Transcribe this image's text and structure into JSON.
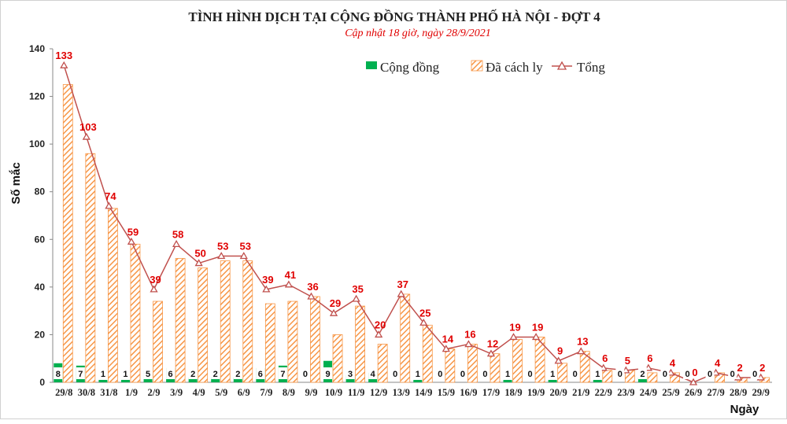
{
  "chart_data": {
    "type": "bar",
    "title": "TÌNH HÌNH DỊCH TẠI CỘNG ĐỒNG THÀNH PHỐ HÀ NỘI - ĐỢT 4",
    "subtitle": "Cập nhật 18 giờ, ngày 28/9/2021",
    "xlabel": "Ngày",
    "ylabel": "Số mắc",
    "ylim": [
      0,
      140
    ],
    "yticks": [
      0,
      20,
      40,
      60,
      80,
      100,
      120,
      140
    ],
    "legend_position": "top",
    "categories": [
      "29/8",
      "30/8",
      "31/8",
      "1/9",
      "2/9",
      "3/9",
      "4/9",
      "5/9",
      "6/9",
      "7/9",
      "8/9",
      "9/9",
      "10/9",
      "11/9",
      "12/9",
      "13/9",
      "14/9",
      "15/9",
      "16/9",
      "17/9",
      "18/9",
      "19/9",
      "20/9",
      "21/9",
      "22/9",
      "23/9",
      "24/9",
      "25/9",
      "26/9",
      "27/9",
      "28/9",
      "29/9"
    ],
    "series": [
      {
        "name": "Cộng đồng",
        "type": "bar",
        "color": "#00b050",
        "values": [
          8,
          7,
          1,
          1,
          5,
          6,
          2,
          2,
          2,
          6,
          7,
          0,
          9,
          3,
          4,
          0,
          1,
          0,
          0,
          0,
          1,
          0,
          1,
          0,
          1,
          0,
          2,
          0,
          0,
          0,
          0,
          0
        ]
      },
      {
        "name": "Đã cách ly",
        "type": "bar-hatched",
        "color": "#f79646",
        "values": [
          125,
          96,
          73,
          58,
          34,
          52,
          48,
          51,
          51,
          33,
          34,
          36,
          20,
          32,
          16,
          37,
          24,
          14,
          16,
          12,
          18,
          19,
          8,
          13,
          5,
          5,
          4,
          4,
          0,
          4,
          2,
          2
        ]
      },
      {
        "name": "Tổng",
        "type": "line",
        "color": "#c0504d",
        "values": [
          133,
          103,
          74,
          59,
          39,
          58,
          50,
          53,
          53,
          39,
          41,
          36,
          29,
          35,
          20,
          37,
          25,
          14,
          16,
          12,
          19,
          19,
          9,
          13,
          6,
          5,
          6,
          4,
          0,
          4,
          2,
          2
        ]
      }
    ]
  }
}
